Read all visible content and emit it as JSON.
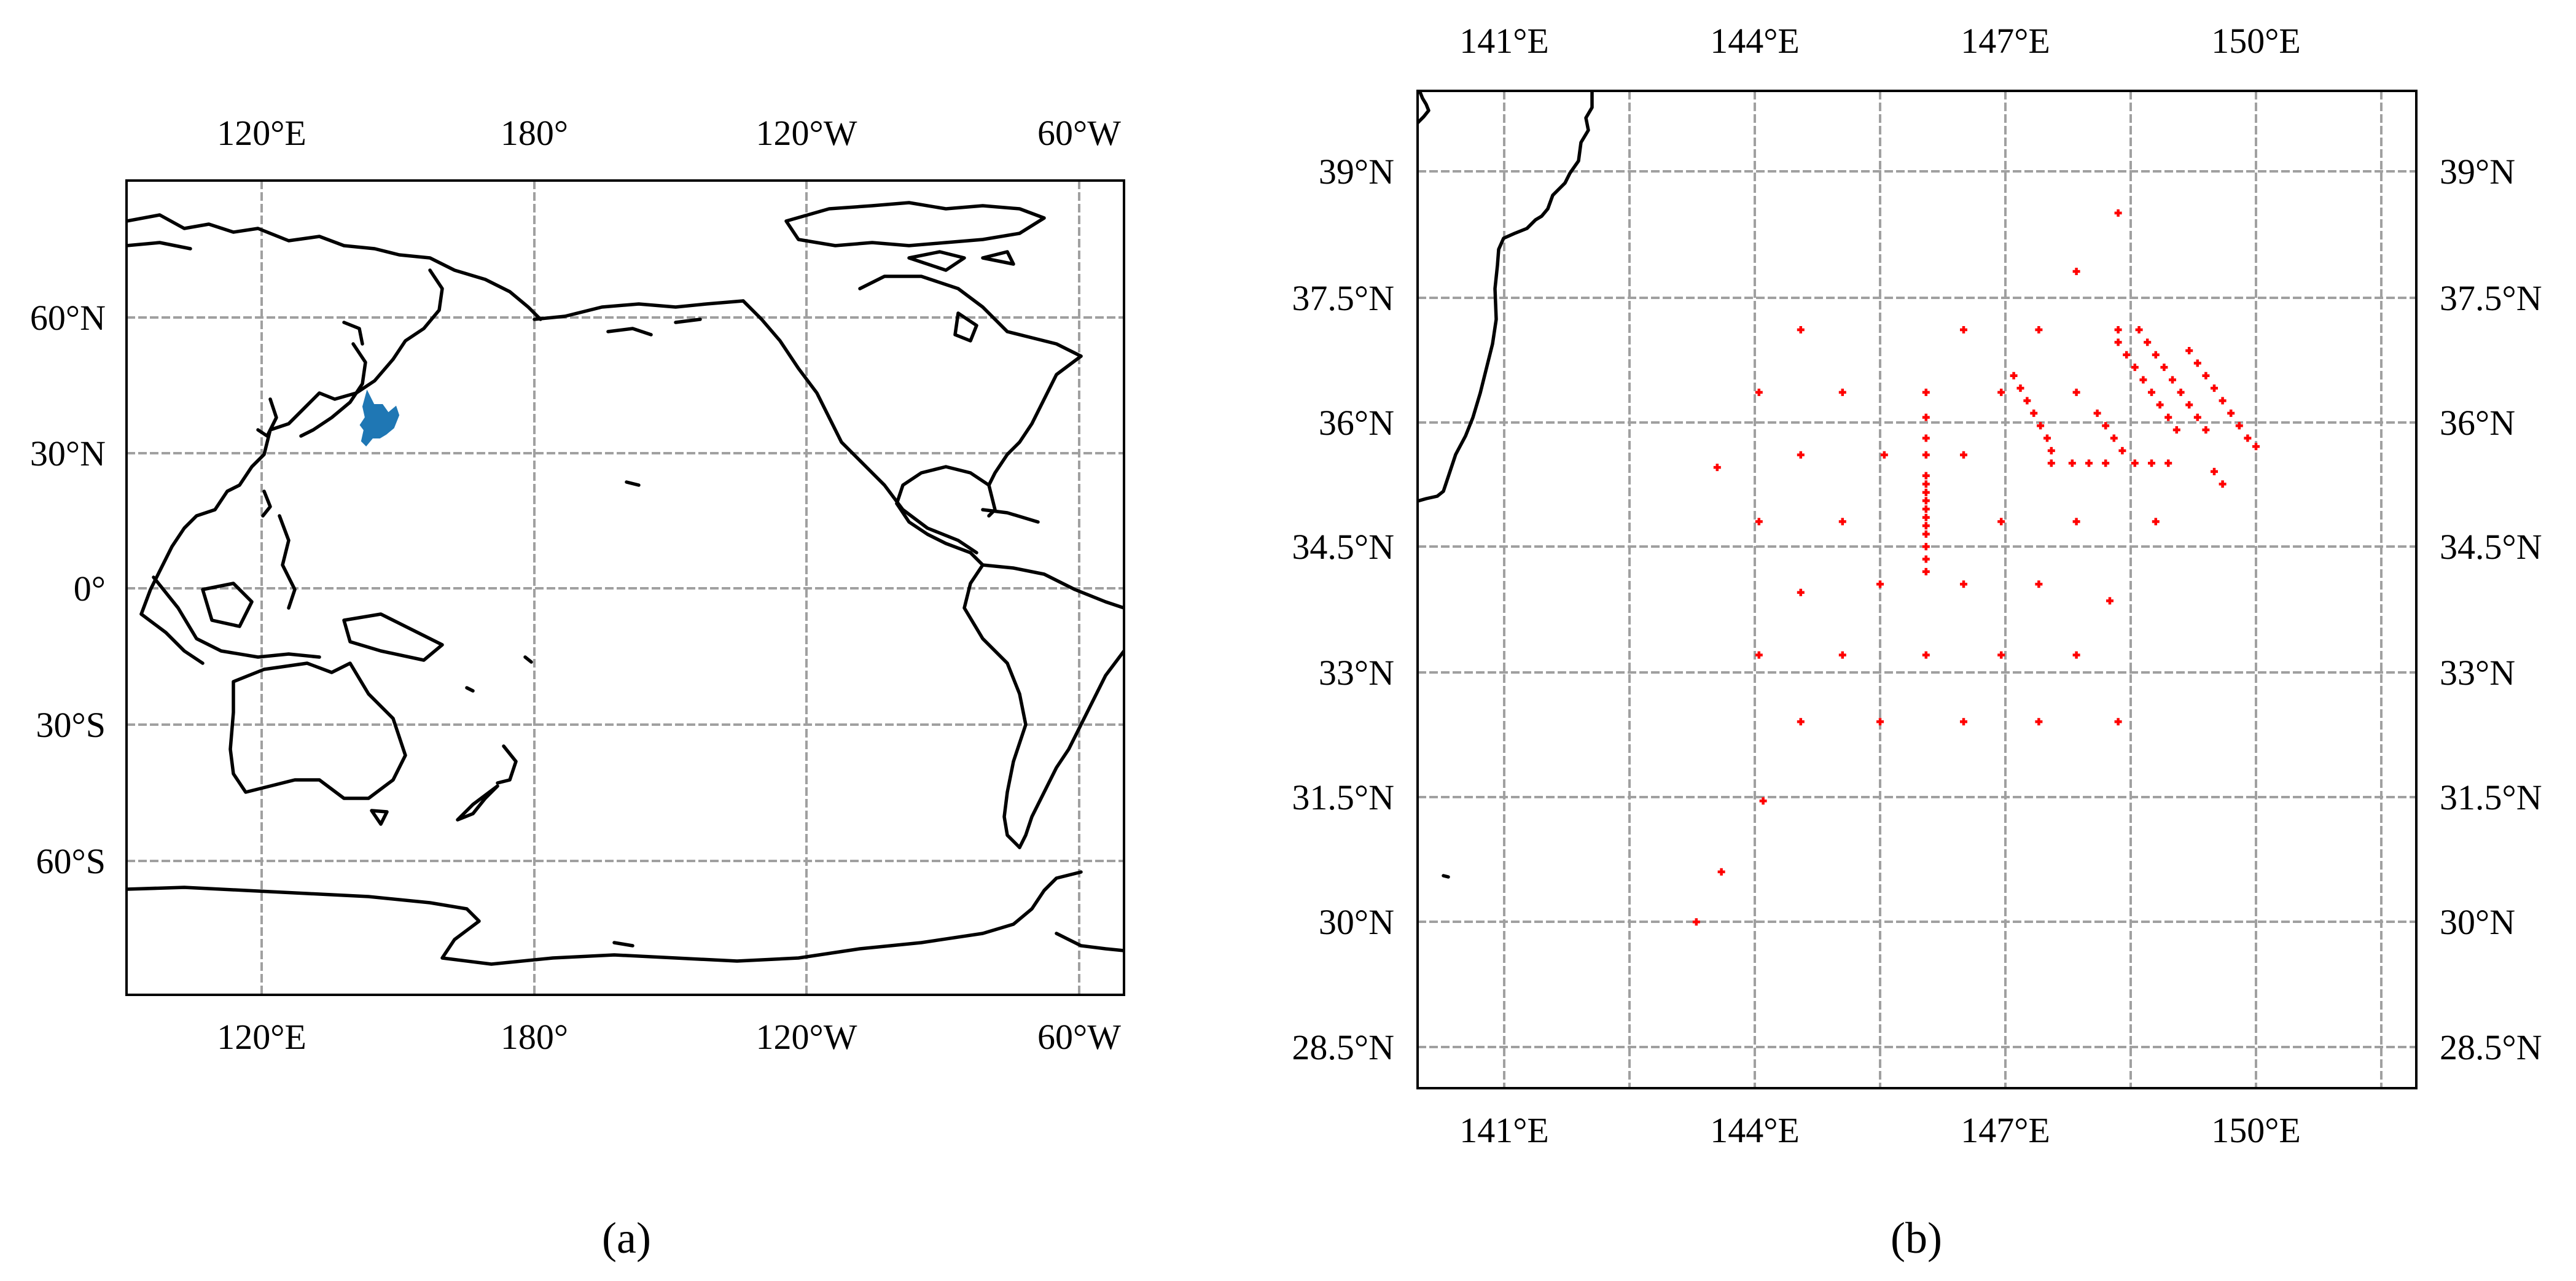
{
  "panel_a": {
    "caption": "(a)",
    "x_ticks_top": [
      "120°E",
      "180°",
      "120°W",
      "60°W"
    ],
    "x_ticks_bottom": [
      "120°E",
      "180°",
      "120°W",
      "60°W"
    ],
    "y_ticks_left": [
      "60°N",
      "30°N",
      "0°",
      "30°S",
      "60°S"
    ],
    "study_area_color": "#1f77b4"
  },
  "panel_b": {
    "caption": "(b)",
    "x_ticks_top": [
      "141°E",
      "144°E",
      "147°E",
      "150°E"
    ],
    "x_ticks_bottom": [
      "141°E",
      "144°E",
      "147°E",
      "150°E"
    ],
    "y_ticks_left": [
      "39°N",
      "37.5°N",
      "36°N",
      "34.5°N",
      "33°N",
      "31.5°N",
      "30°N",
      "28.5°N"
    ],
    "y_ticks_right": [
      "39°N",
      "37.5°N",
      "36°N",
      "34.5°N",
      "33°N",
      "31.5°N",
      "30°N",
      "28.5°N"
    ],
    "marker_color": "#ff0000",
    "station_points": [
      [
        148.35,
        38.5
      ],
      [
        147.85,
        37.8
      ],
      [
        144.55,
        37.1
      ],
      [
        146.5,
        37.1
      ],
      [
        147.4,
        37.1
      ],
      [
        148.35,
        37.1
      ],
      [
        144.05,
        36.35
      ],
      [
        145.05,
        36.35
      ],
      [
        146.05,
        36.35
      ],
      [
        146.95,
        36.35
      ],
      [
        147.85,
        36.35
      ],
      [
        146.05,
        36.05
      ],
      [
        146.05,
        35.8
      ],
      [
        143.55,
        35.45
      ],
      [
        144.55,
        35.6
      ],
      [
        145.55,
        35.6
      ],
      [
        146.05,
        35.6
      ],
      [
        146.5,
        35.6
      ],
      [
        146.05,
        35.35
      ],
      [
        146.05,
        35.25
      ],
      [
        146.05,
        35.15
      ],
      [
        146.05,
        35.05
      ],
      [
        146.05,
        34.95
      ],
      [
        146.05,
        34.85
      ],
      [
        146.05,
        34.75
      ],
      [
        146.05,
        34.65
      ],
      [
        146.05,
        34.5
      ],
      [
        146.05,
        34.35
      ],
      [
        146.05,
        34.2
      ],
      [
        144.05,
        34.8
      ],
      [
        145.05,
        34.8
      ],
      [
        146.95,
        34.8
      ],
      [
        147.85,
        34.8
      ],
      [
        148.8,
        34.8
      ],
      [
        144.55,
        33.95
      ],
      [
        145.5,
        34.05
      ],
      [
        146.5,
        34.05
      ],
      [
        147.4,
        34.05
      ],
      [
        148.25,
        33.85
      ],
      [
        144.05,
        33.2
      ],
      [
        145.05,
        33.2
      ],
      [
        146.05,
        33.2
      ],
      [
        146.95,
        33.2
      ],
      [
        147.85,
        33.2
      ],
      [
        144.55,
        32.4
      ],
      [
        145.5,
        32.4
      ],
      [
        146.5,
        32.4
      ],
      [
        147.4,
        32.4
      ],
      [
        148.35,
        32.4
      ],
      [
        144.1,
        31.45
      ],
      [
        143.6,
        30.6
      ],
      [
        143.3,
        30.0
      ],
      [
        147.1,
        36.55
      ],
      [
        147.18,
        36.4
      ],
      [
        147.26,
        36.25
      ],
      [
        147.34,
        36.1
      ],
      [
        147.42,
        35.95
      ],
      [
        147.5,
        35.8
      ],
      [
        147.55,
        35.65
      ],
      [
        147.55,
        35.5
      ],
      [
        147.8,
        35.5
      ],
      [
        148.0,
        35.5
      ],
      [
        148.2,
        35.5
      ],
      [
        148.55,
        35.5
      ],
      [
        148.75,
        35.5
      ],
      [
        148.95,
        35.5
      ],
      [
        148.35,
        36.95
      ],
      [
        148.45,
        36.8
      ],
      [
        148.55,
        36.65
      ],
      [
        148.65,
        36.5
      ],
      [
        148.75,
        36.35
      ],
      [
        148.85,
        36.2
      ],
      [
        148.95,
        36.05
      ],
      [
        149.05,
        35.9
      ],
      [
        148.6,
        37.1
      ],
      [
        148.7,
        36.95
      ],
      [
        148.8,
        36.8
      ],
      [
        148.9,
        36.65
      ],
      [
        149.0,
        36.5
      ],
      [
        149.1,
        36.35
      ],
      [
        149.2,
        36.2
      ],
      [
        149.3,
        36.05
      ],
      [
        149.4,
        35.9
      ],
      [
        149.2,
        36.85
      ],
      [
        149.3,
        36.7
      ],
      [
        149.4,
        36.55
      ],
      [
        149.5,
        36.4
      ],
      [
        149.6,
        36.25
      ],
      [
        149.7,
        36.1
      ],
      [
        149.8,
        35.95
      ],
      [
        149.9,
        35.8
      ],
      [
        150.0,
        35.7
      ],
      [
        149.5,
        35.4
      ],
      [
        149.6,
        35.25
      ],
      [
        148.1,
        36.1
      ],
      [
        148.2,
        35.95
      ],
      [
        148.3,
        35.8
      ],
      [
        148.4,
        35.65
      ]
    ]
  }
}
